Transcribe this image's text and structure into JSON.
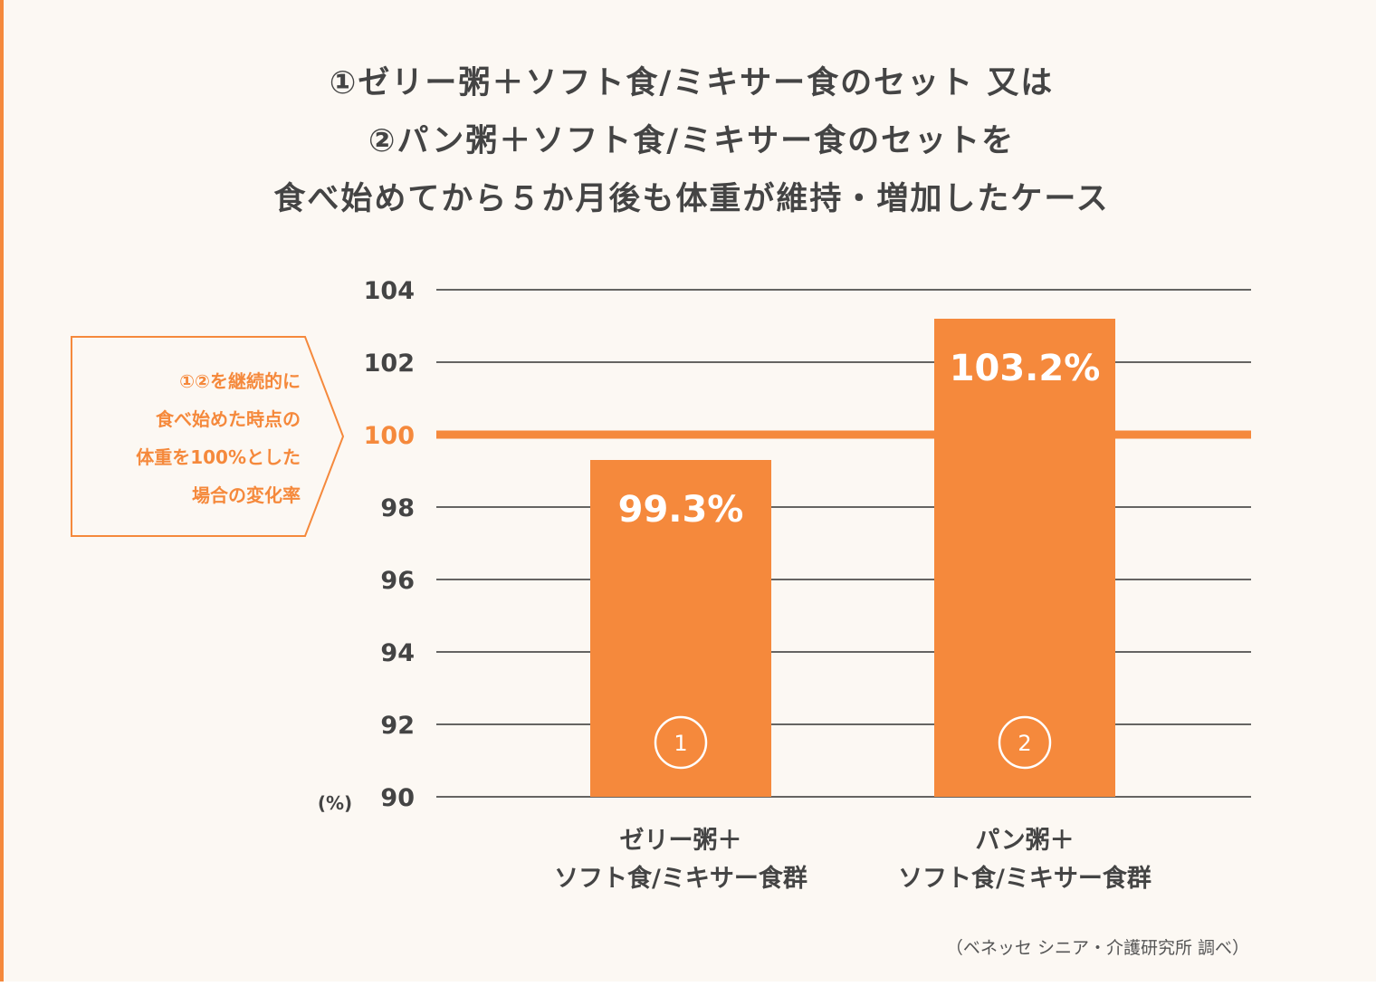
{
  "title_lines": [
    "①ゼリー粥＋ソフト食/ミキサー食のセット 又は",
    "②パン粥＋ソフト食/ミキサー食のセットを",
    "食べ始めてから５か月後も体重が維持・増加したケース"
  ],
  "annotation_lines": [
    "①②を継続的に",
    "食べ始めた時点の",
    "体重を100%とした",
    "場合の変化率"
  ],
  "source": "（ベネッセ シニア・介護研究所 調べ）",
  "colors": {
    "accent": "#f5893c",
    "text": "#444444",
    "background": "#fcf8f3"
  },
  "chart_data": {
    "type": "bar",
    "categories": [
      [
        "ゼリー粥＋",
        "ソフト食/ミキサー食群"
      ],
      [
        "パン粥＋",
        "ソフト食/ミキサー食群"
      ]
    ],
    "values": [
      99.3,
      103.2
    ],
    "value_labels": [
      "99.3%",
      "103.2%"
    ],
    "markers": [
      "1",
      "2"
    ],
    "ylim": [
      90,
      104
    ],
    "yticks": [
      104,
      102,
      100,
      98,
      96,
      94,
      92,
      90
    ],
    "ylabel": "(%)",
    "reference_line": 100,
    "grid": true
  }
}
